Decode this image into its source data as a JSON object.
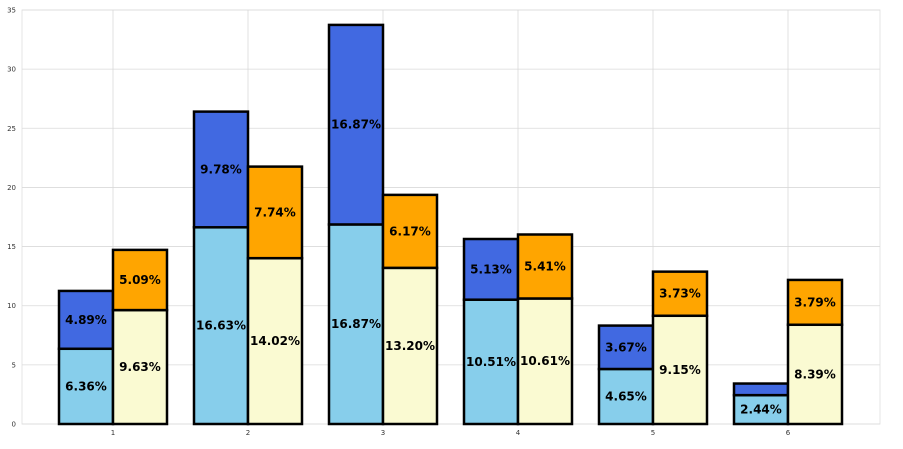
{
  "chart_data": {
    "type": "bar",
    "stacked": true,
    "grouped": true,
    "title": "",
    "xlabel": "",
    "ylabel": "",
    "ylim": [
      0,
      35
    ],
    "grid": true,
    "yticks": [
      "0",
      "5",
      "10",
      "15",
      "20",
      "25",
      "30",
      "35"
    ],
    "categories": [
      "1",
      "2",
      "3",
      "4",
      "5",
      "6"
    ],
    "groups": [
      {
        "name": "left",
        "series": [
          {
            "name": "bottom",
            "color": "#87CEEB",
            "values": [
              6.36,
              16.63,
              16.87,
              10.51,
              4.65,
              2.44
            ],
            "labels": [
              "6.36%",
              "16.63%",
              "16.87%",
              "10.51%",
              "4.65%",
              "2.44%"
            ]
          },
          {
            "name": "top",
            "color": "#4169E1",
            "values": [
              4.89,
              9.78,
              16.87,
              5.13,
              3.67,
              0.98
            ],
            "labels": [
              "4.89%",
              "9.78%",
              "16.87%",
              "5.13%",
              "3.67%",
              ""
            ]
          }
        ]
      },
      {
        "name": "right",
        "series": [
          {
            "name": "bottom",
            "color": "#FAFAD2",
            "values": [
              9.63,
              14.02,
              13.2,
              10.61,
              9.15,
              8.39
            ],
            "labels": [
              "9.63%",
              "14.02%",
              "13.20%",
              "10.61%",
              "9.15%",
              "8.39%"
            ]
          },
          {
            "name": "top",
            "color": "#FFA500",
            "values": [
              5.09,
              7.74,
              6.17,
              5.41,
              3.73,
              3.79
            ],
            "labels": [
              "5.09%",
              "7.74%",
              "6.17%",
              "5.41%",
              "3.73%",
              "3.79%"
            ]
          }
        ]
      }
    ]
  }
}
